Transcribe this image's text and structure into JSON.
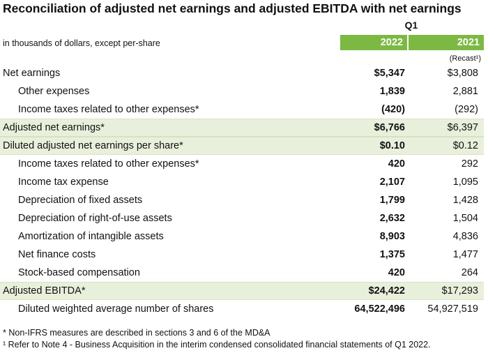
{
  "title": "Reconciliation of adjusted net earnings and adjusted EBITDA with net earnings",
  "header": {
    "period": "Q1",
    "units": "in thousands of dollars, except per-share",
    "col1": "2022",
    "col2": "2021",
    "col2_note": "(Recast¹)"
  },
  "table": {
    "rows": [
      [
        "Net earnings",
        "$5,347",
        "$3,808"
      ],
      [
        "Other expenses",
        "1,839",
        "2,881"
      ],
      [
        "Income taxes related to other expenses*",
        "(420)",
        "(292)"
      ],
      [
        "Adjusted net earnings*",
        "$6,766",
        "$6,397"
      ],
      [
        "Diluted adjusted net earnings per share*",
        "$0.10",
        "$0.12"
      ],
      [
        "Income taxes related to other expenses*",
        "420",
        "292"
      ],
      [
        "Income tax expense",
        "2,107",
        "1,095"
      ],
      [
        "Depreciation of fixed assets",
        "1,799",
        "1,428"
      ],
      [
        "Depreciation of right-of-use assets",
        "2,632",
        "1,504"
      ],
      [
        "Amortization of intangible assets",
        "8,903",
        "4,836"
      ],
      [
        "Net finance costs",
        "1,375",
        "1,477"
      ],
      [
        "Stock-based compensation",
        "420",
        "264"
      ],
      [
        "Adjusted EBITDA*",
        "$24,422",
        "$17,293"
      ],
      [
        "Diluted weighted average number of shares",
        "64,522,496",
        "54,927,519"
      ]
    ]
  },
  "footnotes": [
    "* Non-IFRS measures are described in sections 3 and 6 of the MD&A",
    "¹ Refer to Note 4 - Business Acquisition in the interim condensed consolidated financial statements of Q1 2022."
  ]
}
